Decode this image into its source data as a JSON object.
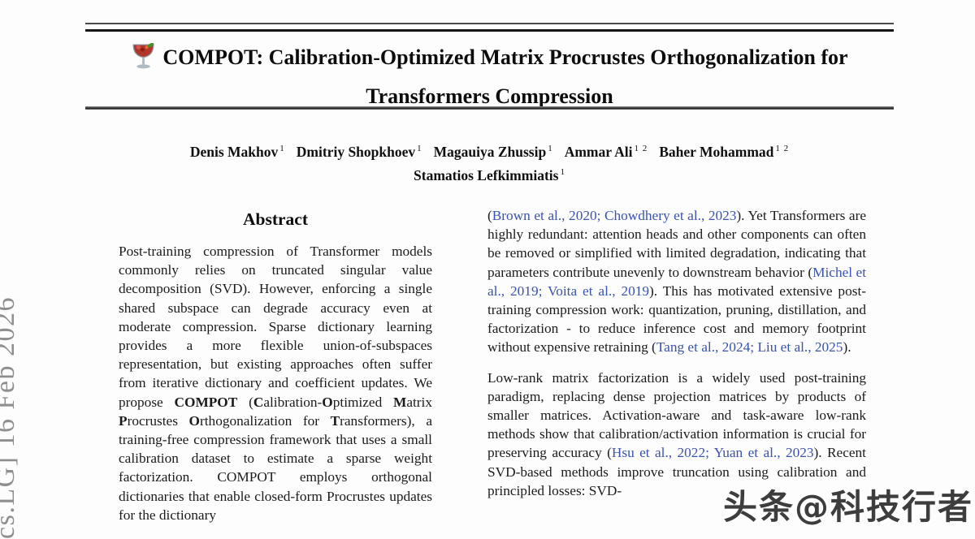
{
  "colors": {
    "citation_blue": "#3a53ac",
    "arxiv_gray": "#8f8f8f",
    "watermark_gray": "#3d3d3d",
    "text_dark": "#161616",
    "rule_dark": "#151515"
  },
  "page": {
    "arxiv_label": "cs.LG] 16 Feb 2026",
    "watermark": "头条@科技行者"
  },
  "title": {
    "icon": "compot-glass-icon",
    "line1": "COMPOT: Calibration-Optimized Matrix Procrustes Orthogonalization for",
    "line2": "Transformers Compression"
  },
  "authors": {
    "line1": [
      {
        "t": "Denis Makhov",
        "s": "name"
      },
      {
        "t": "1",
        "s": "sup"
      },
      {
        "t": " ",
        "s": "gap"
      },
      {
        "t": "Dmitriy Shopkhoev",
        "s": "name"
      },
      {
        "t": "1",
        "s": "sup"
      },
      {
        "t": " ",
        "s": "gap"
      },
      {
        "t": "Magauiya Zhussip",
        "s": "name"
      },
      {
        "t": "1",
        "s": "sup"
      },
      {
        "t": " ",
        "s": "gap"
      },
      {
        "t": "Ammar Ali",
        "s": "name"
      },
      {
        "t": "1 2",
        "s": "sup"
      },
      {
        "t": " ",
        "s": "gap"
      },
      {
        "t": "Baher Mohammad",
        "s": "name"
      },
      {
        "t": "1 2",
        "s": "sup"
      }
    ],
    "line2": [
      {
        "t": "Stamatios Lefkimmiatis",
        "s": "name"
      },
      {
        "t": "1",
        "s": "sup"
      }
    ]
  },
  "abstract": {
    "heading": "Abstract",
    "segments": [
      {
        "t": "Post-training compression of Transformer models commonly relies on truncated singular value decomposition (SVD). However, enforcing a single shared subspace can degrade accuracy even at moderate compression. Sparse dictionary learning provides a more flexible union-of-subspaces representation, but existing approaches often suffer from iterative dictionary and coefficient updates. We propose "
      },
      {
        "t": "COMPOT",
        "s": "b"
      },
      {
        "t": " ("
      },
      {
        "t": "C",
        "s": "b"
      },
      {
        "t": "alibration-"
      },
      {
        "t": "O",
        "s": "b"
      },
      {
        "t": "ptimized "
      },
      {
        "t": "M",
        "s": "b"
      },
      {
        "t": "atrix "
      },
      {
        "t": "P",
        "s": "b"
      },
      {
        "t": "rocrustes "
      },
      {
        "t": "O",
        "s": "b"
      },
      {
        "t": "rthogonalization for "
      },
      {
        "t": "T",
        "s": "b"
      },
      {
        "t": "ransformers), a training-free compression framework that uses a small calibration dataset to estimate a sparse weight factorization. COMPOT employs orthogonal dictionaries that enable closed-form Procrustes updates for the dictionary"
      }
    ]
  },
  "intro": {
    "paragraphs": [
      {
        "segments": [
          {
            "t": "("
          },
          {
            "t": "Brown et al., 2020; Chowdhery et al., 2023",
            "s": "cite"
          },
          {
            "t": ").  Yet Transformers are highly redundant: attention heads and other components can often be removed or simplified with limited degradation, indicating that parameters contribute unevenly to downstream behavior ("
          },
          {
            "t": "Michel et al., 2019; Voita et al., 2019",
            "s": "cite"
          },
          {
            "t": "). This has motivated extensive post-training compression work: quantization, pruning, distillation, and factorization - to reduce inference cost and memory footprint without expensive retraining ("
          },
          {
            "t": "Tang et al., 2024; Liu et al., 2025",
            "s": "cite"
          },
          {
            "t": ")."
          }
        ]
      },
      {
        "segments": [
          {
            "t": "Low-rank matrix factorization is a widely used post-training paradigm, replacing dense projection matrices by products of smaller matrices. Activation-aware and task-aware low-rank methods show that calibration/activation information is crucial for preserving accuracy ("
          },
          {
            "t": "Hsu et al., 2022; Yuan et al., 2023",
            "s": "cite"
          },
          {
            "t": ").  Recent SVD-based methods improve truncation using calibration and principled losses: SVD-"
          }
        ]
      }
    ]
  }
}
